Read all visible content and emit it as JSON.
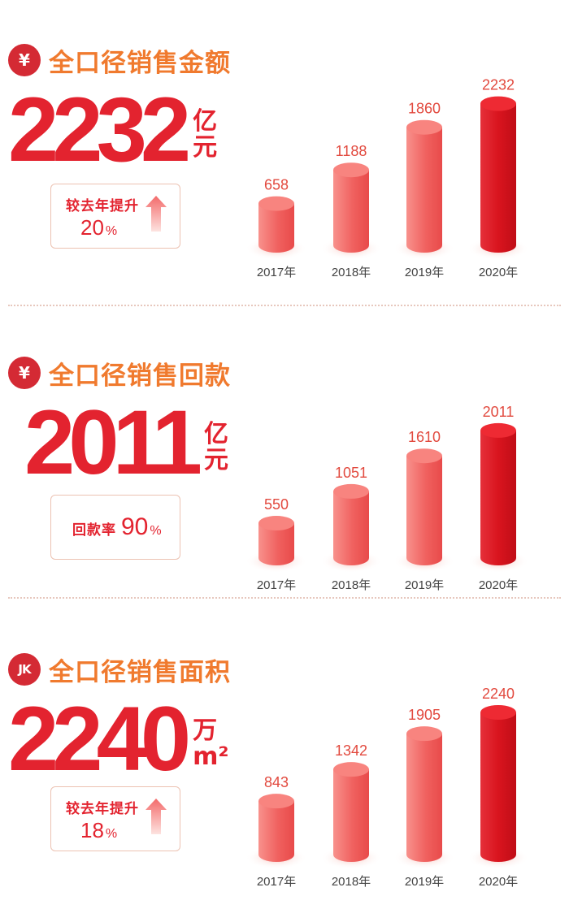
{
  "sections": [
    {
      "icon": "¥",
      "icon_name": "yen-icon",
      "title": "全口径销售金额",
      "big_value": "2232",
      "unit_line1": "亿",
      "unit_line2": "元",
      "box": {
        "label": "较去年提升",
        "value": "20",
        "pct": "%"
      }
    },
    {
      "icon": "¥",
      "icon_name": "yen-icon",
      "title": "全口径销售回款",
      "big_value": "2011",
      "unit_line1": "亿",
      "unit_line2": "元",
      "box": {
        "label": "回款率",
        "value": "90",
        "pct": "%"
      }
    },
    {
      "icon": "JK",
      "icon_name": "jk-logo-icon",
      "title": "全口径销售面积",
      "big_value": "2240",
      "unit_line1": "万",
      "unit_line2": "m²",
      "box": {
        "label": "较去年提升",
        "value": "18",
        "pct": "%"
      }
    }
  ],
  "colors": {
    "accent_red": "#e3232f",
    "title_orange": "#f07a2e",
    "bar_light": "#f0615f",
    "bar_dark": "#d9141e"
  },
  "chart_data": [
    {
      "type": "bar",
      "categories": [
        "2017年",
        "2018年",
        "2019年",
        "2020年"
      ],
      "values": [
        658,
        1188,
        1860,
        2232
      ]
    },
    {
      "type": "bar",
      "categories": [
        "2017年",
        "2018年",
        "2019年",
        "2020年"
      ],
      "values": [
        550,
        1051,
        1610,
        2011
      ]
    },
    {
      "type": "bar",
      "categories": [
        "2017年",
        "2018年",
        "2019年",
        "2020年"
      ],
      "values": [
        843,
        1342,
        1905,
        2240
      ]
    }
  ]
}
